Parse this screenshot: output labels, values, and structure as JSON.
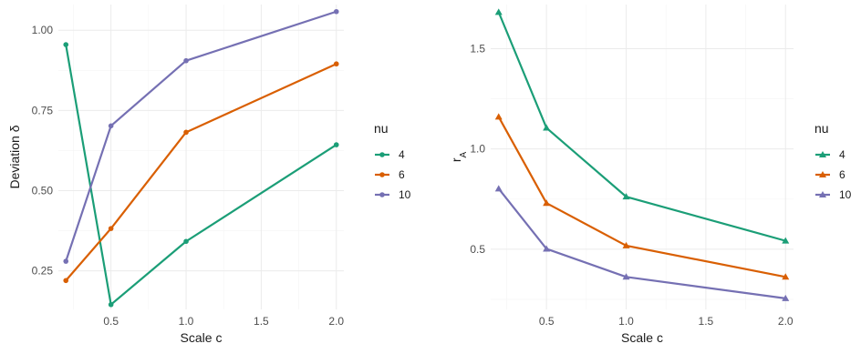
{
  "chart_data": [
    {
      "type": "line",
      "xlabel": "Scale c",
      "ylabel": "Deviation δ",
      "x": [
        0.2,
        0.5,
        1.0,
        2.0
      ],
      "xlim": [
        0.15,
        2.05
      ],
      "ylim": [
        0.13,
        1.08
      ],
      "xticks": [
        0.5,
        1.0,
        1.5,
        2.0
      ],
      "xtick_labels": [
        "0.5",
        "1.0",
        "1.5",
        "2.0"
      ],
      "yticks": [
        0.25,
        0.5,
        0.75,
        1.0
      ],
      "ytick_labels": [
        "0.25",
        "0.50",
        "0.75",
        "1.00"
      ],
      "marker": "circle",
      "grid": true,
      "legend_title": "nu",
      "legend_position": "right",
      "series": [
        {
          "name": "4",
          "color": "#1b9e77",
          "values": [
            0.955,
            0.145,
            0.342,
            0.643
          ]
        },
        {
          "name": "6",
          "color": "#d95f02",
          "values": [
            0.22,
            0.382,
            0.682,
            0.895
          ]
        },
        {
          "name": "10",
          "color": "#7570b3",
          "values": [
            0.28,
            0.702,
            0.905,
            1.058
          ]
        }
      ]
    },
    {
      "type": "line",
      "xlabel": "Scale c",
      "ylabel": "r",
      "ylabel_subscript": "A",
      "x": [
        0.2,
        0.5,
        1.0,
        2.0
      ],
      "xlim": [
        0.15,
        2.05
      ],
      "ylim": [
        0.2,
        1.72
      ],
      "xticks": [
        0.5,
        1.0,
        1.5,
        2.0
      ],
      "xtick_labels": [
        "0.5",
        "1.0",
        "1.5",
        "2.0"
      ],
      "yticks": [
        0.5,
        1.0,
        1.5
      ],
      "ytick_labels": [
        "0.5",
        "1.0",
        "1.5"
      ],
      "marker": "triangle",
      "grid": true,
      "legend_title": "nu",
      "legend_position": "right",
      "series": [
        {
          "name": "4",
          "color": "#1b9e77",
          "values": [
            1.682,
            1.105,
            0.762,
            0.542
          ]
        },
        {
          "name": "6",
          "color": "#d95f02",
          "values": [
            1.16,
            0.73,
            0.518,
            0.362
          ]
        },
        {
          "name": "10",
          "color": "#7570b3",
          "values": [
            0.802,
            0.502,
            0.362,
            0.255
          ]
        }
      ]
    }
  ]
}
